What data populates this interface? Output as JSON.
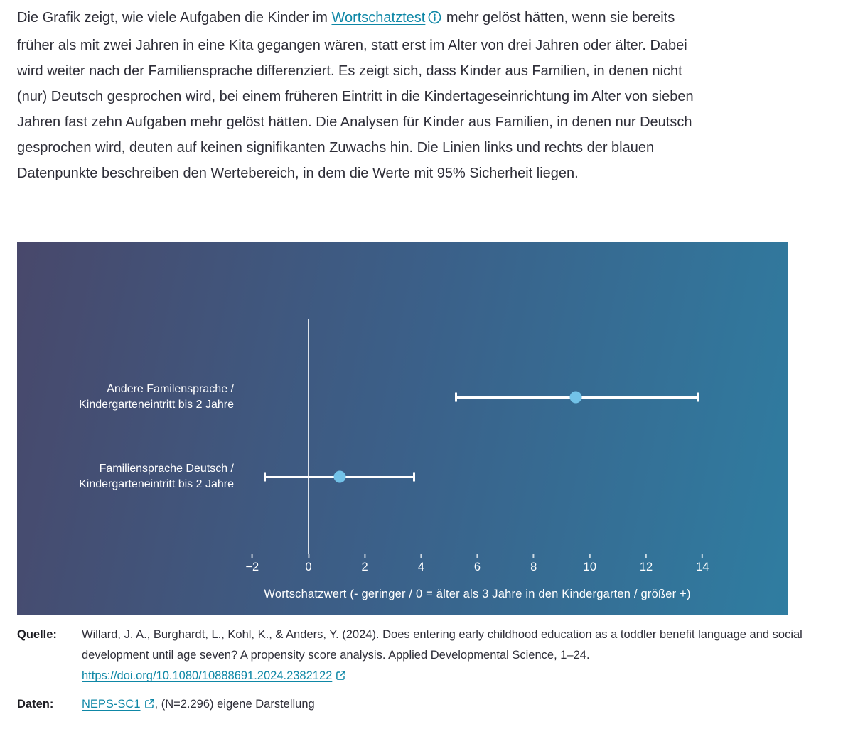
{
  "intro": {
    "text_before": "Die Grafik zeigt, wie viele Aufgaben die Kinder im ",
    "link_label": "Wortschatztest",
    "info_icon": "info-circle",
    "text_after": " mehr gelöst hätten, wenn sie bereits früher als mit zwei Jahren in eine Kita gegangen wären, statt erst im Alter von drei Jahren oder älter. Dabei wird weiter nach der Familiensprache differenziert. Es zeigt sich, dass Kinder aus Familien, in denen nicht (nur) Deutsch gesprochen wird, bei einem früheren Eintritt in die Kindertageseinrichtung im Alter von sieben Jahren fast zehn Aufgaben mehr gelöst hätten. Die Analysen für Kinder aus Familien, in denen nur Deutsch gesprochen wird, deuten auf keinen signifikanten Zuwachs hin. Die Linien links und rechts der blauen Datenpunkte beschreiben den Wertebereich, in dem die Werte mit 95% Sicherheit liegen."
  },
  "chart_data": {
    "type": "scatter",
    "subtype": "dot-with-horizontal-error-bars",
    "rows": [
      {
        "label_line1": "Andere Familensprache /",
        "label_line2": "Kindergarteneintritt bis 2 Jahre",
        "value": 9.5,
        "ci_low": 5.2,
        "ci_high": 13.9
      },
      {
        "label_line1": "Familiensprache Deutsch /",
        "label_line2": "Kindergarteneintritt bis 2 Jahre",
        "value": 1.1,
        "ci_low": -1.6,
        "ci_high": 3.8
      }
    ],
    "x_ticks": [
      -2,
      0,
      2,
      4,
      6,
      8,
      10,
      12,
      14
    ],
    "x_tick_labels": [
      "−2",
      "0",
      "2",
      "4",
      "6",
      "8",
      "10",
      "12",
      "14"
    ],
    "xlim": [
      -2.5,
      14.5
    ],
    "zero_line": 0,
    "xlabel": "Wortschatzwert (- geringer / 0 = älter als 3 Jahre in den Kindergarten / größer +)",
    "confidence_note": "95% Sicherheit",
    "grid": false,
    "legend": "none",
    "colors": {
      "point": "#72c2e8",
      "error_bar": "#ffffff",
      "bg_left": "#48486b",
      "bg_mid": "#3b6089",
      "bg_right": "#2f7da1",
      "chart_text": "#ffffff"
    }
  },
  "source": {
    "quelle_label": "Quelle:",
    "citation_text": "Willard, J. A., Burghardt, L., Kohl, K., & Anders, Y. (2024). Does entering early childhood education as a toddler benefit language and social development until age seven? A propensity score analysis. Applied Developmental Science, 1–24. ",
    "citation_link": "https://doi.org/10.1080/10888691.2024.2382122",
    "daten_label": "Daten:",
    "daten_link": "NEPS-SC1",
    "daten_text": ", (N=2.296) eigene Darstellung"
  },
  "colors": {
    "link": "#0e87a6",
    "text": "#2e2e38"
  }
}
